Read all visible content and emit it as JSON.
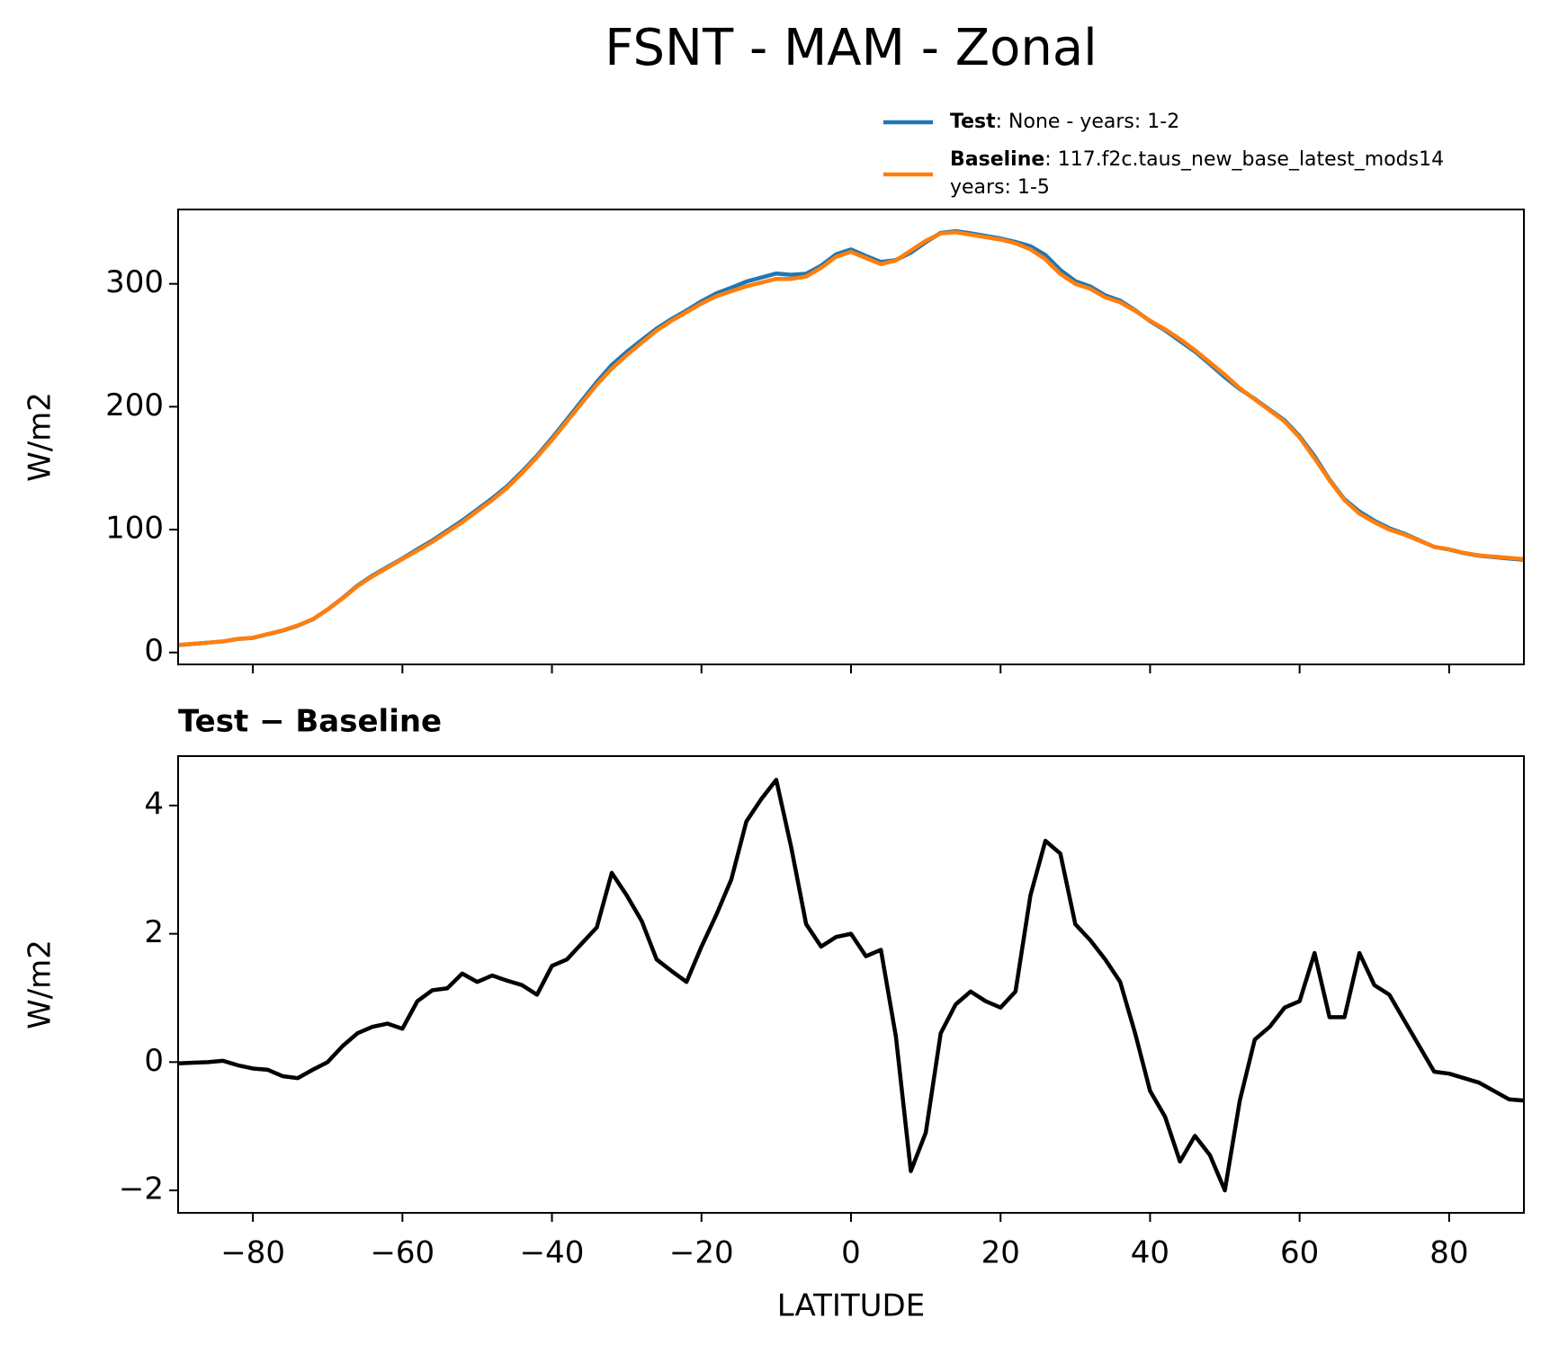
{
  "chart_data": [
    {
      "type": "line",
      "title": "FSNT - MAM - Zonal",
      "ylabel": "W/m2",
      "x": [
        -90,
        -88,
        -86,
        -84,
        -82,
        -80,
        -78,
        -76,
        -74,
        -72,
        -70,
        -68,
        -66,
        -64,
        -62,
        -60,
        -58,
        -56,
        -54,
        -52,
        -50,
        -48,
        -46,
        -44,
        -42,
        -40,
        -38,
        -36,
        -34,
        -32,
        -30,
        -28,
        -26,
        -24,
        -22,
        -20,
        -18,
        -16,
        -14,
        -12,
        -10,
        -8,
        -6,
        -4,
        -2,
        0,
        2,
        4,
        6,
        8,
        10,
        12,
        14,
        16,
        18,
        20,
        22,
        24,
        26,
        28,
        30,
        32,
        34,
        36,
        38,
        40,
        42,
        44,
        46,
        48,
        50,
        52,
        54,
        56,
        58,
        60,
        62,
        64,
        66,
        68,
        70,
        72,
        74,
        76,
        78,
        80,
        82,
        84,
        86,
        88,
        90
      ],
      "series": [
        {
          "name": "Test",
          "description": [
            ": None - years: 1-2"
          ],
          "color": "#1f77b4",
          "values": [
            6.0,
            7.0,
            8.0,
            9.0,
            11.0,
            11.9,
            14.9,
            17.8,
            21.8,
            26.9,
            35.0,
            44.3,
            54.5,
            62.6,
            69.6,
            76.5,
            84.0,
            91.1,
            99.2,
            107.4,
            116.3,
            125.4,
            135.3,
            147.2,
            160.1,
            174.5,
            189.6,
            204.9,
            220.1,
            234.0,
            244.6,
            254.2,
            263.6,
            271.4,
            278.3,
            285.8,
            292.3,
            296.9,
            301.8,
            305.1,
            308.4,
            307.4,
            308.2,
            314.8,
            324.0,
            328.0,
            322.7,
            317.8,
            319.4,
            325.3,
            333.9,
            341.5,
            342.9,
            341.1,
            339.0,
            336.9,
            334.1,
            330.6,
            323.5,
            311.3,
            302.2,
            297.9,
            290.6,
            286.3,
            278.5,
            269.6,
            262.2,
            253.5,
            244.9,
            234.6,
            224.0,
            214.4,
            206.4,
            197.6,
            188.9,
            176.0,
            159.7,
            140.7,
            124.7,
            114.7,
            107.2,
            101.1,
            96.7,
            91.3,
            85.9,
            83.8,
            80.8,
            78.7,
            77.6,
            76.4,
            75.4
          ]
        },
        {
          "name": "Baseline",
          "description": [
            ": 117.f2c.taus_new_base_latest_mods14",
            "years: 1-5"
          ],
          "color": "#ff7f0e",
          "values": [
            6,
            7,
            8,
            9,
            11,
            12,
            15,
            18,
            22,
            27,
            35,
            44,
            54,
            62,
            69,
            76,
            83,
            90,
            98,
            106,
            115,
            124,
            134,
            146,
            159,
            173,
            188,
            203,
            218,
            231,
            242,
            252,
            262,
            270,
            277,
            284,
            290,
            294,
            298,
            301,
            304,
            304,
            306,
            313,
            322,
            326,
            321,
            316,
            319,
            327,
            335,
            341,
            342,
            340,
            338,
            336,
            333,
            328,
            320,
            308,
            300,
            296,
            289,
            285,
            278,
            270,
            263,
            255,
            246,
            236,
            226,
            215,
            206,
            197,
            188,
            175,
            158,
            140,
            124,
            113,
            106,
            100,
            96,
            91,
            86,
            84,
            81,
            79,
            78,
            77,
            76
          ]
        }
      ],
      "xlim": [
        -90,
        90
      ],
      "xticks": [
        -80,
        -60,
        -40,
        -20,
        0,
        20,
        40,
        60,
        80
      ],
      "ylim": [
        -9.7,
        360.5
      ],
      "yticks": [
        0,
        100,
        200,
        300
      ]
    },
    {
      "type": "line",
      "title": "Test − Baseline",
      "ylabel": "W/m2",
      "xlabel": "LATITUDE",
      "color": "#000000",
      "x": [
        -90,
        -88,
        -86,
        -84,
        -82,
        -80,
        -78,
        -76,
        -74,
        -72,
        -70,
        -68,
        -66,
        -64,
        -62,
        -60,
        -58,
        -56,
        -54,
        -52,
        -50,
        -48,
        -46,
        -44,
        -42,
        -40,
        -38,
        -36,
        -34,
        -32,
        -30,
        -28,
        -26,
        -24,
        -22,
        -20,
        -18,
        -16,
        -14,
        -12,
        -10,
        -8,
        -6,
        -4,
        -2,
        0,
        2,
        4,
        6,
        8,
        10,
        12,
        14,
        16,
        18,
        20,
        22,
        24,
        26,
        28,
        30,
        32,
        34,
        36,
        38,
        40,
        42,
        44,
        46,
        48,
        50,
        52,
        54,
        56,
        58,
        60,
        62,
        64,
        66,
        68,
        70,
        72,
        74,
        76,
        78,
        80,
        82,
        84,
        86,
        88,
        90
      ],
      "values": [
        -0.02,
        -0.01,
        0.0,
        0.02,
        -0.05,
        -0.1,
        -0.12,
        -0.22,
        -0.25,
        -0.12,
        0.0,
        0.25,
        0.45,
        0.55,
        0.6,
        0.52,
        0.95,
        1.12,
        1.15,
        1.38,
        1.25,
        1.35,
        1.27,
        1.2,
        1.05,
        1.5,
        1.6,
        1.85,
        2.1,
        2.95,
        2.6,
        2.2,
        1.6,
        1.42,
        1.25,
        1.8,
        2.3,
        2.85,
        3.75,
        4.1,
        4.4,
        3.35,
        2.15,
        1.8,
        1.95,
        2.0,
        1.65,
        1.75,
        0.4,
        -1.7,
        -1.1,
        0.45,
        0.9,
        1.1,
        0.95,
        0.85,
        1.1,
        2.6,
        3.45,
        3.25,
        2.15,
        1.9,
        1.6,
        1.25,
        0.45,
        -0.45,
        -0.85,
        -1.55,
        -1.15,
        -1.45,
        -2.0,
        -0.6,
        0.35,
        0.55,
        0.85,
        0.95,
        1.7,
        0.7,
        0.7,
        1.7,
        1.2,
        1.05,
        0.65,
        0.25,
        -0.15,
        -0.18,
        -0.25,
        -0.32,
        -0.45,
        -0.58,
        -0.6
      ],
      "xlim": [
        -90,
        90
      ],
      "xticks": [
        {
          "value": -80,
          "label": "−80"
        },
        {
          "value": -60,
          "label": "−60"
        },
        {
          "value": -40,
          "label": "−40"
        },
        {
          "value": -20,
          "label": "−20"
        },
        0,
        20,
        40,
        60,
        80
      ],
      "ylim": [
        -2.35,
        4.77
      ],
      "yticks": [
        {
          "value": -2,
          "label": "−2"
        },
        0,
        2,
        4
      ]
    }
  ]
}
